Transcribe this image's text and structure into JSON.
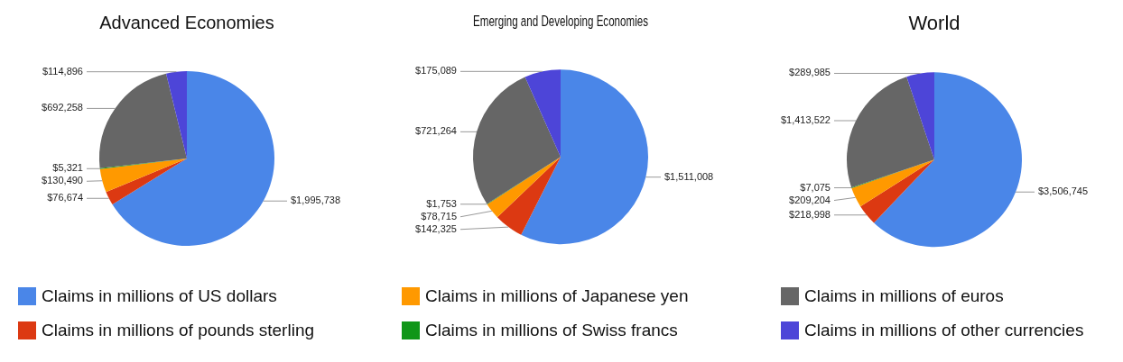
{
  "chart_data": [
    {
      "type": "pie",
      "title": "Advanced Economies",
      "legend": "bottom",
      "categories": [
        "Claims in millions of US dollars",
        "Claims in millions of pounds sterling",
        "Claims in millions of Japanese yen",
        "Claims in millions of Swiss francs",
        "Claims in millions of euros",
        "Claims in millions of other currencies"
      ],
      "values": [
        1995738,
        76674,
        130490,
        5321,
        692258,
        114896
      ],
      "value_labels": [
        "$1,995,738",
        "$76,674",
        "$130,490",
        "$5,321",
        "$692,258",
        "$114,896"
      ],
      "colors": [
        "#4a86e8",
        "#dc3912",
        "#ff9900",
        "#109618",
        "#666666",
        "#4d45d8"
      ]
    },
    {
      "type": "pie",
      "title": "Emerging and Developing Economies",
      "categories": [
        null,
        null,
        null,
        null,
        null,
        null
      ],
      "values": [
        1511008,
        142325,
        78715,
        1753,
        721264,
        175089
      ],
      "value_labels": [
        "$1,511,008",
        "$142,325",
        "$78,715",
        "$1,753",
        "$721,264",
        "$175,089"
      ],
      "colors": [
        "#4a86e8",
        "#dc3912",
        "#ff9900",
        "#109618",
        "#666666",
        "#4d45d8"
      ]
    },
    {
      "type": "pie",
      "title": "World",
      "categories": [
        null,
        null,
        null,
        null,
        null,
        null
      ],
      "values": [
        3506745,
        218998,
        209204,
        7075,
        1413522,
        289985
      ],
      "value_labels": [
        "$3,506,745",
        "$218,998",
        "$209,204",
        "$7,075",
        "$1,413,522",
        "$289,985"
      ],
      "colors": [
        "#4a86e8",
        "#dc3912",
        "#ff9900",
        "#109618",
        "#666666",
        "#4d45d8"
      ]
    }
  ]
}
